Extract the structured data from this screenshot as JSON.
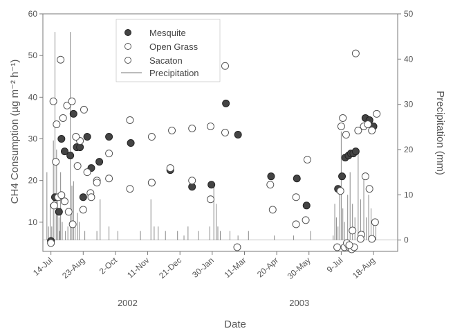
{
  "chart_data": {
    "type": "scatter",
    "xlabel": "Date",
    "ylabel_left": "CH4 Consumption (µg m⁻² h⁻¹)",
    "ylabel_right": "Precipitation (mm)",
    "x_ticks": [
      "14-Jul",
      "23-Aug",
      "2-Oct",
      "11-Nov",
      "21-Dec",
      "30-Jan",
      "11-Mar",
      "20-Apr",
      "30-May",
      "9-Jul",
      "18-Aug"
    ],
    "x_tick_days": [
      0,
      40,
      80,
      120,
      160,
      200,
      240,
      280,
      320,
      360,
      400
    ],
    "years": [
      {
        "label": "2002",
        "day": 95
      },
      {
        "label": "2003",
        "day": 308
      }
    ],
    "x_range_days": [
      -10,
      430
    ],
    "y_left_ticks": [
      10,
      20,
      30,
      40,
      50,
      60
    ],
    "y_left_range": [
      3,
      60
    ],
    "y_right_ticks": [
      0,
      10,
      20,
      30,
      40,
      50
    ],
    "y_right_range": [
      -2.5,
      50
    ],
    "legend": [
      "Mesquite",
      "Open Grass",
      "Sacaton",
      "Precipitation"
    ],
    "legend_position": "top-left",
    "series": [
      {
        "name": "Mesquite",
        "marker": "filled",
        "color": "#333333",
        "points": [
          [
            0,
            5.5
          ],
          [
            5,
            16
          ],
          [
            10,
            12.5
          ],
          [
            13,
            30
          ],
          [
            17,
            27
          ],
          [
            24,
            26
          ],
          [
            28,
            36
          ],
          [
            32,
            28
          ],
          [
            36,
            28
          ],
          [
            40,
            16
          ],
          [
            45,
            30.5
          ],
          [
            50,
            23
          ],
          [
            60,
            24.5
          ],
          [
            72,
            30.5
          ],
          [
            99,
            29
          ],
          [
            125,
            19.5
          ],
          [
            148,
            22.5
          ],
          [
            175,
            18.5
          ],
          [
            199,
            19
          ],
          [
            217,
            38.5
          ],
          [
            232,
            31
          ],
          [
            273,
            21
          ],
          [
            305,
            20.5
          ],
          [
            317,
            14
          ],
          [
            356,
            18
          ],
          [
            361,
            21
          ],
          [
            365,
            25.5
          ],
          [
            369,
            26
          ],
          [
            372,
            26.5
          ],
          [
            375,
            26.5
          ],
          [
            378,
            27
          ],
          [
            390,
            35
          ],
          [
            395,
            34.5
          ],
          [
            400,
            33
          ]
        ]
      },
      {
        "name": "Open Grass",
        "marker": "open",
        "color": "#555555",
        "points": [
          [
            0,
            5
          ],
          [
            4,
            14
          ],
          [
            6,
            24.5
          ],
          [
            9,
            16
          ],
          [
            13,
            16.5
          ],
          [
            17,
            15
          ],
          [
            22,
            12.5
          ],
          [
            27,
            9.5
          ],
          [
            33,
            23.5
          ],
          [
            36,
            29.5
          ],
          [
            40,
            13
          ],
          [
            45,
            22
          ],
          [
            49,
            17
          ],
          [
            57,
            20
          ],
          [
            72,
            20.5
          ],
          [
            98,
            18
          ],
          [
            125,
            19.5
          ],
          [
            148,
            23
          ],
          [
            175,
            20
          ],
          [
            198,
            15.5
          ],
          [
            216,
            31.5
          ],
          [
            231,
            4
          ],
          [
            272,
            19
          ],
          [
            304,
            9.5
          ],
          [
            316,
            10.5
          ],
          [
            355,
            4
          ],
          [
            360,
            33
          ],
          [
            364,
            4
          ],
          [
            367,
            5
          ],
          [
            370,
            4
          ],
          [
            373,
            3.5
          ],
          [
            376,
            4
          ],
          [
            381,
            32
          ],
          [
            385,
            7
          ],
          [
            390,
            21
          ],
          [
            395,
            18
          ],
          [
            398,
            6
          ],
          [
            402,
            10
          ]
        ]
      },
      {
        "name": "Sacaton",
        "marker": "open",
        "color": "#555555",
        "points": [
          [
            3,
            39
          ],
          [
            7,
            33.5
          ],
          [
            12,
            49
          ],
          [
            15,
            35
          ],
          [
            20,
            38
          ],
          [
            26,
            39
          ],
          [
            31,
            30.5
          ],
          [
            41,
            37
          ],
          [
            50,
            16
          ],
          [
            57,
            19.5
          ],
          [
            72,
            26.5
          ],
          [
            98,
            34.5
          ],
          [
            125,
            30.5
          ],
          [
            150,
            32
          ],
          [
            175,
            32.5
          ],
          [
            198,
            33
          ],
          [
            216,
            47.5
          ],
          [
            275,
            13
          ],
          [
            304,
            16
          ],
          [
            318,
            25
          ],
          [
            359,
            17.5
          ],
          [
            362,
            35
          ],
          [
            366,
            31
          ],
          [
            370,
            4.5
          ],
          [
            374,
            8
          ],
          [
            378,
            50.5
          ],
          [
            384,
            6
          ],
          [
            388,
            33
          ],
          [
            393,
            33.5
          ],
          [
            398,
            32
          ],
          [
            404,
            36
          ]
        ]
      },
      {
        "name": "Precipitation",
        "marker": "line",
        "color": "#777777",
        "bars": [
          [
            -5,
            15
          ],
          [
            -3,
            3
          ],
          [
            -1,
            8
          ],
          [
            1,
            3
          ],
          [
            3,
            22
          ],
          [
            5,
            46
          ],
          [
            7,
            20
          ],
          [
            8,
            10
          ],
          [
            10,
            5
          ],
          [
            11,
            2
          ],
          [
            12,
            15
          ],
          [
            14,
            4
          ],
          [
            18,
            2
          ],
          [
            21,
            3
          ],
          [
            24,
            46
          ],
          [
            26,
            12
          ],
          [
            28,
            13
          ],
          [
            30,
            3
          ],
          [
            33,
            6
          ],
          [
            35,
            4
          ],
          [
            42,
            2
          ],
          [
            57,
            2
          ],
          [
            61,
            9
          ],
          [
            72,
            3
          ],
          [
            83,
            2
          ],
          [
            111,
            2
          ],
          [
            124,
            9
          ],
          [
            128,
            3
          ],
          [
            133,
            3
          ],
          [
            142,
            2
          ],
          [
            157,
            2
          ],
          [
            165,
            1
          ],
          [
            170,
            3
          ],
          [
            183,
            2
          ],
          [
            197,
            3
          ],
          [
            202,
            12
          ],
          [
            205,
            8
          ],
          [
            207,
            3
          ],
          [
            210,
            2
          ],
          [
            222,
            2
          ],
          [
            232,
            1
          ],
          [
            245,
            2
          ],
          [
            277,
            1
          ],
          [
            301,
            1
          ],
          [
            322,
            2
          ],
          [
            350,
            1
          ],
          [
            352,
            8
          ],
          [
            354,
            5
          ],
          [
            356,
            3
          ],
          [
            358,
            12
          ],
          [
            360,
            24
          ],
          [
            362,
            7
          ],
          [
            364,
            4
          ],
          [
            368,
            10
          ],
          [
            371,
            15
          ],
          [
            374,
            8
          ],
          [
            377,
            5
          ],
          [
            381,
            19
          ],
          [
            384,
            9
          ],
          [
            388,
            14
          ],
          [
            391,
            5
          ],
          [
            394,
            10
          ],
          [
            397,
            7
          ],
          [
            400,
            4
          ],
          [
            403,
            3
          ]
        ]
      }
    ]
  }
}
